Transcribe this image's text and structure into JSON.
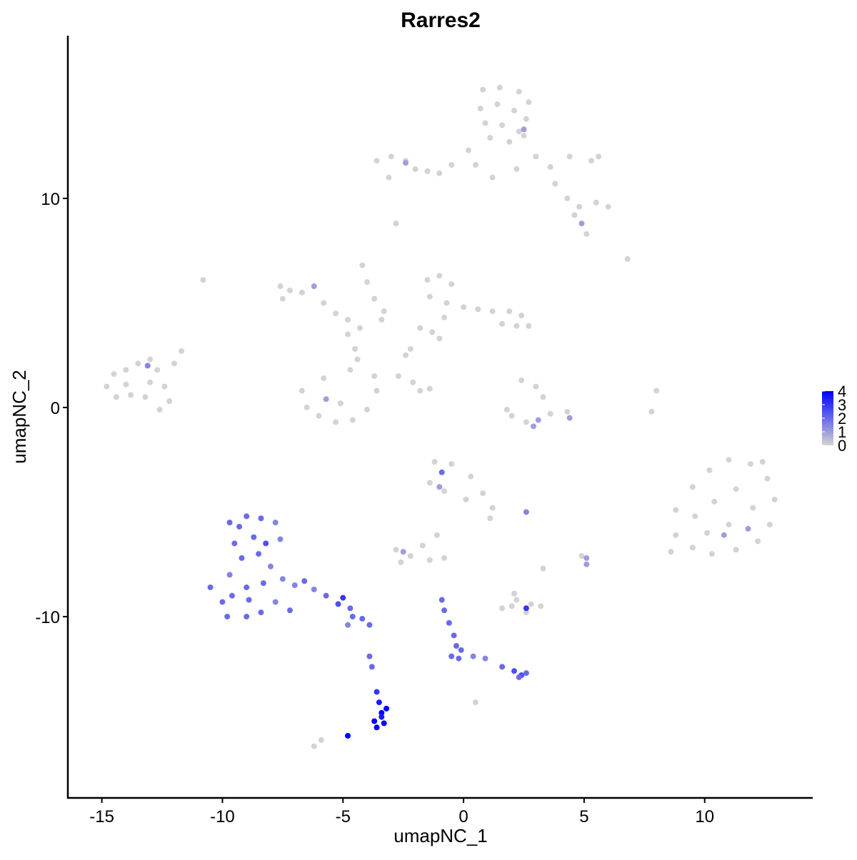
{
  "chart_data": {
    "type": "scatter",
    "title": "Rarres2",
    "xlabel": "umapNC_1",
    "ylabel": "umapNC_2",
    "xlim": [
      -16.41,
      14.48
    ],
    "ylim": [
      -18.67,
      17.78
    ],
    "xticks": [
      -15,
      -10,
      -5,
      0,
      5,
      10
    ],
    "yticks": [
      -10,
      0,
      10
    ],
    "color_low": "#d3d3d3",
    "color_high": "#0000ff",
    "clim": [
      0,
      4
    ],
    "cticks": [
      0,
      1,
      2,
      3,
      4
    ],
    "x": [
      0.8,
      1.5,
      2.3,
      2.7,
      0.7,
      1.4,
      2.1,
      2.6,
      0.9,
      1.6,
      2.3,
      1.1,
      1.9,
      2.5,
      2.5,
      0.2,
      -0.5,
      -1,
      0.5,
      1.2,
      2.2,
      3.0,
      3.6,
      4.4,
      5.3,
      5.6,
      3.8,
      4.3,
      4.8,
      5.5,
      6,
      4.6,
      4.9,
      5.1,
      -3.6,
      -3,
      -2.4,
      -2,
      -1.5,
      -3.1,
      -2.4,
      -2.8,
      6.8,
      -7.6,
      -7.2,
      -6.7,
      -7.5,
      -6.2,
      -5.8,
      -5.3,
      -4.8,
      -4.3,
      -4.8,
      -4.2,
      -4.0,
      -3.7,
      -3.3,
      -3.4,
      -10.8,
      -6.7,
      -6.5,
      -6.0,
      -5.3,
      -4.6,
      -4.0,
      -3.6,
      -3.7,
      -5.8,
      -4.7,
      -4.4,
      -4.5,
      -5.7,
      -5.1,
      -1.5,
      -1.0,
      -0.5,
      -1.4,
      -0.7,
      0,
      0.6,
      1.2,
      1.9,
      2.4,
      2.7,
      2.2,
      1.6,
      -0.8,
      -1.3,
      -1.8,
      -2.2,
      -1.0,
      -2.4,
      -2.7,
      -2.1,
      -1.8,
      -1.4,
      2.4,
      3.0,
      3.3,
      3.6,
      3.1,
      2.6,
      2.0,
      1.8,
      4.3,
      4.4,
      2.9,
      8.0,
      7.8,
      -14.8,
      -14.5,
      -14.0,
      -13.5,
      -13.0,
      -12.7,
      -12.4,
      -12.2,
      -12.6,
      -13.2,
      -13.8,
      -14.4,
      -13.0,
      -12.0,
      -11.7,
      -13.1,
      -14.0,
      8.8,
      9.5,
      10.2,
      11.0,
      11.9,
      12.6,
      12.9,
      12.7,
      12.2,
      11.3,
      10.3,
      9.5,
      8.8,
      9.6,
      10.4,
      11.3,
      12.0,
      11.0,
      10.1,
      11.8,
      10.8,
      8.6,
      12.4,
      -1.2,
      -0.5,
      0.3,
      -1.4,
      -0.8,
      0.1,
      0.8,
      1.2,
      1.1,
      -0.9,
      -1.0,
      -2.8,
      -2.2,
      -2.5,
      -1.7,
      -2.6,
      -1.1,
      -0.8,
      -1.4,
      2.6,
      3.3,
      4.9,
      5.1,
      5.1,
      2.0,
      1.6,
      2.2,
      2.8,
      3.2,
      2.6,
      2.6,
      2.1,
      0.5,
      -6.2,
      -5.9,
      -10.5,
      -10.0,
      -9.8,
      -9.0,
      -8.4,
      -9.7,
      -9.5,
      -9.7,
      -9.0,
      -8.4,
      -7.8,
      -7.6,
      -8.7,
      -9.2,
      -8.5,
      -8.0,
      -7.5,
      -8.3,
      -9.0,
      -9.6,
      -7.8,
      -7.2,
      -7.0,
      -6.6,
      -6.2,
      -5.7,
      -5.2,
      -5.0,
      -4.7,
      -4.6,
      -4.2,
      -3.9,
      -4.8,
      -8.9,
      -8.2,
      -9.3,
      -3.9,
      -3.8,
      -3.6,
      -3.5,
      -3.4,
      -3.7,
      -3.3,
      -3.6,
      -3.4,
      -3.2,
      -4.8,
      -0.9,
      -0.8,
      -0.6,
      -0.4,
      -0.3,
      -0.1,
      -0.2,
      -0.5,
      0.4,
      0.9,
      1.6,
      2.1,
      2.4,
      2.6,
      2.3
    ],
    "y": [
      15.2,
      15.3,
      15.1,
      14.6,
      14.3,
      14.5,
      14.2,
      13.8,
      13.6,
      13.5,
      13.2,
      12.9,
      12.7,
      13.0,
      13.3,
      12.3,
      11.6,
      11.2,
      11.6,
      11.0,
      11.4,
      12.0,
      11.5,
      12.0,
      11.8,
      12.0,
      10.7,
      10.0,
      9.6,
      9.8,
      9.6,
      9.2,
      8.8,
      8.3,
      11.8,
      12.0,
      11.8,
      11.4,
      11.3,
      11.0,
      11.7,
      8.8,
      7.1,
      5.8,
      5.6,
      5.5,
      5.2,
      5.8,
      5.0,
      4.5,
      4.2,
      3.8,
      3.5,
      6.8,
      6.0,
      5.2,
      4.6,
      4.2,
      6.1,
      0.8,
      0.0,
      -0.4,
      -0.7,
      -0.6,
      -0.1,
      0.8,
      1.5,
      1.4,
      1.8,
      2.3,
      2.8,
      0.4,
      0.2,
      6.1,
      6.3,
      5.9,
      5.3,
      5.0,
      4.8,
      4.7,
      4.6,
      4.6,
      4.4,
      3.9,
      3.9,
      4.0,
      4.3,
      3.6,
      3.8,
      2.8,
      3.3,
      2.5,
      1.5,
      1.2,
      0.8,
      0.9,
      1.3,
      1.0,
      0.5,
      -0.3,
      -0.6,
      -0.7,
      -0.4,
      -0.1,
      -0.2,
      -0.5,
      -0.9,
      0.8,
      -0.2,
      1.0,
      1.6,
      1.8,
      2.1,
      2.3,
      1.8,
      1.0,
      0.3,
      -0.1,
      0.5,
      0.6,
      0.5,
      1.2,
      2.1,
      2.7,
      2.0,
      1.1,
      -4.9,
      -3.8,
      -3.0,
      -2.5,
      -2.7,
      -3.4,
      -4.4,
      -5.6,
      -6.4,
      -6.8,
      -7.0,
      -6.7,
      -6.1,
      -5.2,
      -4.5,
      -3.9,
      -4.8,
      -5.6,
      -6.0,
      -5.8,
      -6.1,
      -6.9,
      -2.6,
      -2.6,
      -2.7,
      -3.3,
      -3.6,
      -4.0,
      -4.4,
      -4.1,
      -4.8,
      -5.3,
      -3.1,
      -3.8,
      -6.8,
      -7.1,
      -6.9,
      -6.6,
      -7.4,
      -6.1,
      -7.2,
      -7.3,
      -5.0,
      -7.7,
      -7.1,
      -7.5,
      -7.2,
      -9.5,
      -9.6,
      -9.2,
      -9.4,
      -9.5,
      -9.8,
      -9.6,
      -8.9,
      -14.1,
      -16.2,
      -15.9,
      -8.6,
      -9.3,
      -10.0,
      -10.0,
      -9.8,
      -8.0,
      -6.5,
      -5.5,
      -5.2,
      -5.3,
      -5.5,
      -6.3,
      -6.2,
      -7.2,
      -7.0,
      -7.6,
      -8.2,
      -8.4,
      -8.6,
      -9.0,
      -9.3,
      -9.7,
      -8.5,
      -8.3,
      -8.7,
      -9.0,
      -9.4,
      -9.1,
      -9.6,
      -10.0,
      -10.1,
      -10.4,
      -10.4,
      -9.2,
      -6.5,
      -5.7,
      -11.9,
      -12.4,
      -13.6,
      -14.1,
      -14.6,
      -15.0,
      -15.1,
      -15.3,
      -14.8,
      -14.4,
      -15.7,
      -9.2,
      -9.7,
      -10.3,
      -10.9,
      -11.4,
      -11.6,
      -12.0,
      -11.9,
      -11.9,
      -12.0,
      -12.4,
      -12.6,
      -12.8,
      -12.7,
      -12.9
    ],
    "values": [
      0,
      0,
      0,
      0,
      0,
      0,
      0,
      0,
      0,
      0,
      0,
      0,
      0,
      0,
      1,
      0,
      0,
      0,
      0,
      0,
      0,
      0,
      0,
      0,
      0,
      0,
      0,
      0,
      0,
      0,
      0,
      0,
      1,
      0,
      0,
      0,
      0,
      0,
      0,
      0,
      1,
      0,
      0,
      0,
      0,
      0,
      0,
      1,
      0,
      0,
      0,
      0,
      0,
      0,
      0,
      0,
      0,
      0,
      0,
      0,
      0,
      0,
      0,
      0,
      0,
      0,
      0,
      0,
      0,
      0,
      0,
      1,
      0,
      0,
      0,
      0,
      0,
      0,
      0,
      0,
      0,
      0,
      0,
      0,
      0,
      0,
      0,
      0,
      0,
      0,
      0,
      0,
      0,
      0,
      0,
      0,
      0,
      0,
      0,
      0,
      1,
      0,
      0,
      0,
      0,
      1,
      1,
      0,
      0,
      0,
      0,
      0,
      0,
      0,
      0,
      0,
      0,
      0,
      0,
      0,
      0,
      0,
      0,
      0,
      1.5,
      0,
      0,
      0,
      0,
      0,
      0,
      0,
      0,
      0,
      0,
      0,
      0,
      0,
      0,
      0,
      0,
      0,
      0,
      0,
      0,
      1,
      1,
      0,
      0,
      0,
      0,
      0,
      0,
      0,
      0,
      0,
      0,
      0,
      2,
      1,
      0,
      0,
      1,
      0,
      0,
      0,
      0,
      0,
      1.5,
      0,
      0,
      1,
      1,
      0,
      0,
      0,
      0,
      0,
      0,
      3,
      0,
      0,
      0,
      0,
      2,
      2,
      2,
      2,
      2,
      1.5,
      2,
      2,
      2,
      2,
      1.5,
      1.5,
      2,
      2,
      2,
      1.5,
      1.5,
      2,
      2,
      2,
      1.5,
      2,
      1.5,
      2,
      1.5,
      2,
      2.5,
      3,
      2,
      2,
      2,
      2,
      1.5,
      2,
      2.5,
      2,
      2,
      2,
      3,
      3.5,
      4,
      4,
      4,
      4,
      3.5,
      4,
      4,
      2,
      2,
      2,
      2,
      2,
      2,
      2,
      2,
      1.5,
      1.5,
      2,
      2.5,
      2.5,
      2,
      2
    ]
  }
}
